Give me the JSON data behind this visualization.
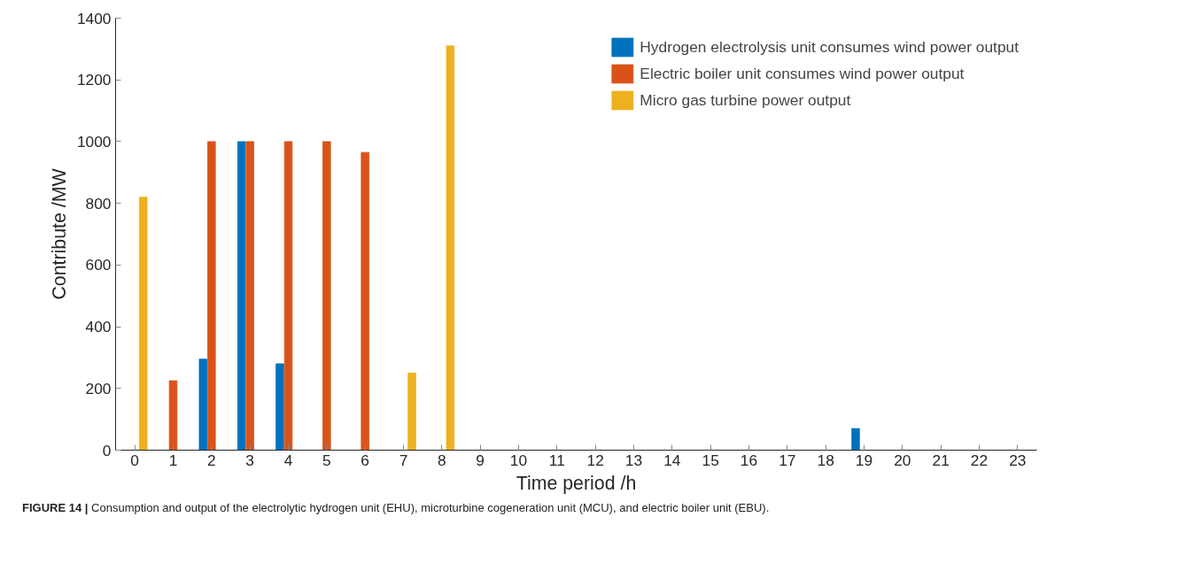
{
  "chart_data": {
    "type": "bar",
    "xlabel": "Time period /h",
    "ylabel": "Contribute /MW",
    "x": [
      0,
      1,
      2,
      3,
      4,
      5,
      6,
      7,
      8,
      9,
      10,
      11,
      12,
      13,
      14,
      15,
      16,
      17,
      18,
      19,
      20,
      21,
      22,
      23
    ],
    "series": [
      {
        "name": "Hydrogen electrolysis unit consumes wind power output",
        "color": "#0072bd",
        "values": [
          0,
          0,
          295,
          1000,
          280,
          0,
          0,
          0,
          0,
          0,
          0,
          0,
          0,
          0,
          0,
          0,
          0,
          0,
          0,
          70,
          0,
          0,
          0,
          0
        ]
      },
      {
        "name": "Electric boiler unit consumes wind power output",
        "color": "#d95319",
        "values": [
          0,
          225,
          1000,
          1000,
          1000,
          1000,
          965,
          0,
          0,
          0,
          0,
          0,
          0,
          0,
          0,
          0,
          0,
          0,
          0,
          0,
          0,
          0,
          0,
          0
        ]
      },
      {
        "name": "Micro gas turbine power output",
        "color": "#edb120",
        "values": [
          820,
          0,
          0,
          0,
          0,
          0,
          0,
          250,
          1310,
          0,
          0,
          0,
          0,
          0,
          0,
          0,
          0,
          0,
          0,
          0,
          0,
          0,
          0,
          0
        ]
      }
    ],
    "xlim": [
      -0.5,
      23.5
    ],
    "xticks": [
      0,
      1,
      2,
      3,
      4,
      5,
      6,
      7,
      8,
      9,
      10,
      11,
      12,
      13,
      14,
      15,
      16,
      17,
      18,
      19,
      20,
      21,
      22,
      23
    ],
    "ylim": [
      0,
      1400
    ],
    "yticks": [
      0,
      200,
      400,
      600,
      800,
      1000,
      1200,
      1400
    ],
    "grid": false,
    "legend": "top right",
    "annotations": [
      "FIGURE 14 | Consumption and output of the electrolytic hydrogen unit (EHU), microturbine cogeneration unit (MCU), and electric boiler unit (EBU)."
    ]
  }
}
